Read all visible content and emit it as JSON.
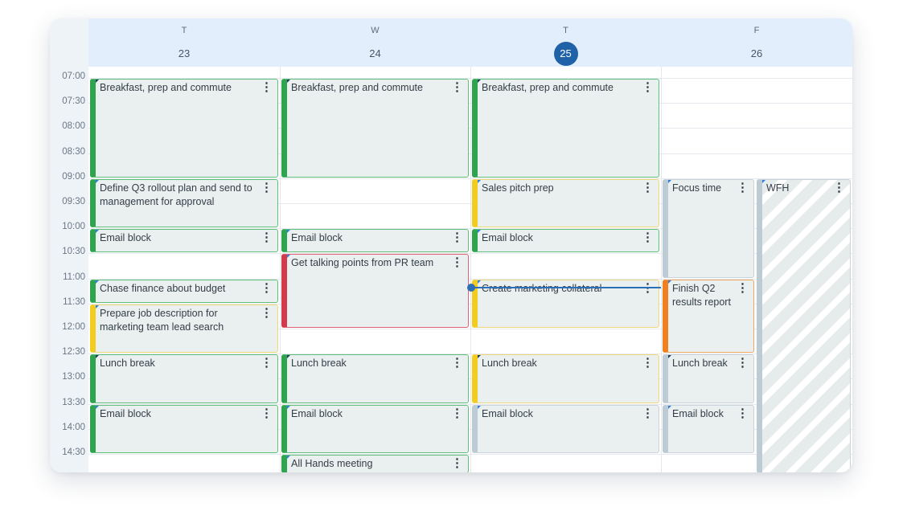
{
  "days": [
    {
      "letter": "T",
      "num": "23",
      "today": false
    },
    {
      "letter": "W",
      "num": "24",
      "today": false
    },
    {
      "letter": "T",
      "num": "25",
      "today": true
    },
    {
      "letter": "F",
      "num": "26",
      "today": false
    }
  ],
  "times": [
    "07:00",
    "07:30",
    "08:00",
    "08:30",
    "09:00",
    "09:30",
    "10:00",
    "10:30",
    "11:00",
    "11:30",
    "12:00",
    "12:30",
    "13:00",
    "13:30",
    "14:00",
    "14:30"
  ],
  "colors": {
    "green": "#2ea44f",
    "yellow": "#f2cd1f",
    "red": "#d33a4c",
    "orange": "#ef7f1f",
    "grey": "#bccbd4",
    "today": "#1f62a8",
    "now_line": "#2c6fb7"
  },
  "events": [
    {
      "day": 0,
      "start": "07:00",
      "end": "09:00",
      "title": "Breakfast, prep and commute",
      "color": "green",
      "tag": "S"
    },
    {
      "day": 0,
      "start": "09:00",
      "end": "10:00",
      "title": "Define Q3 rollout plan and send to management for approval",
      "color": "green",
      "tag": "W"
    },
    {
      "day": 0,
      "start": "10:00",
      "end": "10:30",
      "title": "Email block",
      "color": "green",
      "tag": "W"
    },
    {
      "day": 0,
      "start": "11:00",
      "end": "11:30",
      "title": "Chase finance about budget",
      "color": "green",
      "tag": "W"
    },
    {
      "day": 0,
      "start": "11:30",
      "end": "12:30",
      "title": "Prepare job description for marketing team lead search",
      "color": "yellow",
      "tag": "W"
    },
    {
      "day": 0,
      "start": "12:30",
      "end": "13:30",
      "title": "Lunch break",
      "color": "green",
      "tag": "S"
    },
    {
      "day": 0,
      "start": "13:30",
      "end": "14:30",
      "title": "Email block",
      "color": "green",
      "tag": "W"
    },
    {
      "day": 1,
      "start": "07:00",
      "end": "09:00",
      "title": "Breakfast, prep and commute",
      "color": "green",
      "tag": "S"
    },
    {
      "day": 1,
      "start": "10:00",
      "end": "10:30",
      "title": "Email block",
      "color": "green",
      "tag": "W"
    },
    {
      "day": 1,
      "start": "10:30",
      "end": "12:00",
      "title": "Get talking points from PR team",
      "color": "red",
      "tag": "W"
    },
    {
      "day": 1,
      "start": "12:30",
      "end": "13:30",
      "title": "Lunch break",
      "color": "green",
      "tag": "S"
    },
    {
      "day": 1,
      "start": "13:30",
      "end": "14:30",
      "title": "Email block",
      "color": "green",
      "tag": "W"
    },
    {
      "day": 1,
      "start": "14:30",
      "end": "15:00",
      "title": "All Hands meeting",
      "color": "green",
      "tag": "W"
    },
    {
      "day": 2,
      "start": "07:00",
      "end": "09:00",
      "title": "Breakfast, prep and commute",
      "color": "green",
      "tag": "S"
    },
    {
      "day": 2,
      "start": "09:00",
      "end": "10:00",
      "title": "Sales pitch prep",
      "color": "yellow",
      "tag": "W"
    },
    {
      "day": 2,
      "start": "10:00",
      "end": "10:30",
      "title": "Email block",
      "color": "green",
      "tag": "W"
    },
    {
      "day": 2,
      "start": "11:00",
      "end": "12:00",
      "title": "Create marketing collateral",
      "color": "yellow",
      "tag": "W"
    },
    {
      "day": 2,
      "start": "12:30",
      "end": "13:30",
      "title": "Lunch break",
      "color": "yellow",
      "tag": "S"
    },
    {
      "day": 2,
      "start": "13:30",
      "end": "14:30",
      "title": "Email block",
      "color": "grey",
      "tag": "W"
    },
    {
      "day": 3,
      "start": "09:00",
      "end": "11:00",
      "title": "Focus time",
      "color": "grey",
      "tag": "W",
      "half": "left"
    },
    {
      "day": 3,
      "start": "09:00",
      "end": "15:00",
      "title": "WFH",
      "color": "wfh",
      "tag": "W",
      "half": "right"
    },
    {
      "day": 3,
      "start": "11:00",
      "end": "12:30",
      "title": "Finish Q2 results report",
      "color": "orange",
      "tag": "W",
      "half": "left"
    },
    {
      "day": 3,
      "start": "12:30",
      "end": "13:30",
      "title": "Lunch break",
      "color": "grey",
      "tag": "S",
      "half": "left"
    },
    {
      "day": 3,
      "start": "13:30",
      "end": "14:30",
      "title": "Email block",
      "color": "grey",
      "tag": "W",
      "half": "left"
    }
  ],
  "now": {
    "day": 2,
    "time": "11:10"
  }
}
